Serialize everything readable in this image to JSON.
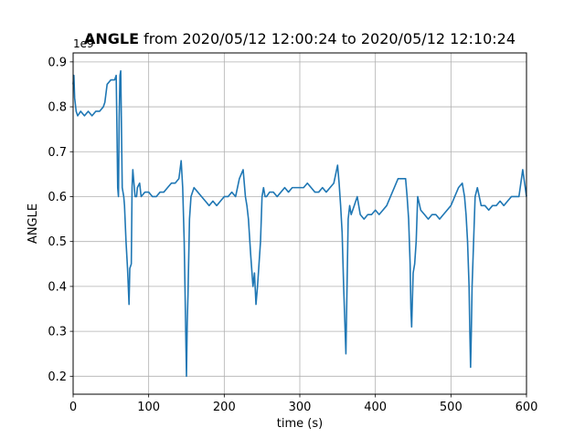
{
  "chart_data": {
    "type": "line",
    "title_bold": "ANGLE",
    "title_rest": " from 2020/05/12 12:00:24 to 2020/05/12 12:10:24",
    "xlabel": "time (s)",
    "ylabel": "ANGLE",
    "offset_text": "1e9",
    "xlim": [
      0,
      600
    ],
    "ylim": [
      0.16,
      0.92
    ],
    "xticks": [
      0,
      100,
      200,
      300,
      400,
      500,
      600
    ],
    "xtick_labels": [
      "0",
      "100",
      "200",
      "300",
      "400",
      "500",
      "600"
    ],
    "yticks": [
      0.2,
      0.3,
      0.4,
      0.5,
      0.6,
      0.7,
      0.8,
      0.9
    ],
    "ytick_labels": [
      "0.2",
      "0.3",
      "0.4",
      "0.5",
      "0.6",
      "0.7",
      "0.8",
      "0.9"
    ],
    "grid": true,
    "line_color": "#1f77b4",
    "series": [
      {
        "x": [
          0,
          1,
          2,
          4,
          6,
          10,
          15,
          20,
          25,
          30,
          35,
          40,
          42,
          45,
          50,
          55,
          57,
          58,
          59,
          60,
          61,
          62,
          63,
          65,
          67,
          68,
          70,
          72,
          73,
          74,
          75,
          77,
          78,
          79,
          80,
          82,
          84,
          85,
          88,
          90,
          95,
          100,
          105,
          110,
          115,
          120,
          125,
          130,
          135,
          140,
          143,
          145,
          147,
          148,
          149,
          150,
          151,
          152,
          154,
          156,
          158,
          160,
          165,
          170,
          175,
          180,
          185,
          190,
          195,
          200,
          205,
          210,
          215,
          220,
          225,
          228,
          230,
          232,
          235,
          238,
          240,
          242,
          244,
          246,
          248,
          250,
          252,
          254,
          256,
          260,
          265,
          270,
          275,
          280,
          285,
          290,
          295,
          300,
          305,
          310,
          315,
          320,
          325,
          330,
          335,
          340,
          345,
          350,
          352,
          354,
          356,
          358,
          360,
          361,
          362,
          364,
          366,
          368,
          372,
          376,
          380,
          385,
          390,
          395,
          400,
          405,
          410,
          415,
          420,
          425,
          430,
          432,
          435,
          440,
          442,
          444,
          446,
          447,
          448,
          450,
          452,
          454,
          456,
          460,
          465,
          470,
          475,
          480,
          485,
          490,
          495,
          500,
          505,
          510,
          515,
          518,
          520,
          522,
          524,
          525,
          526,
          527,
          528,
          530,
          532,
          535,
          540,
          545,
          550,
          555,
          560,
          565,
          570,
          575,
          580,
          585,
          590,
          595,
          600
        ],
        "y": [
          0.85,
          0.87,
          0.82,
          0.79,
          0.78,
          0.79,
          0.78,
          0.79,
          0.78,
          0.79,
          0.79,
          0.8,
          0.81,
          0.85,
          0.86,
          0.86,
          0.87,
          0.75,
          0.62,
          0.6,
          0.78,
          0.87,
          0.88,
          0.62,
          0.6,
          0.58,
          0.5,
          0.44,
          0.4,
          0.36,
          0.44,
          0.45,
          0.62,
          0.66,
          0.64,
          0.6,
          0.6,
          0.62,
          0.63,
          0.6,
          0.61,
          0.61,
          0.6,
          0.6,
          0.61,
          0.61,
          0.62,
          0.63,
          0.63,
          0.64,
          0.68,
          0.62,
          0.5,
          0.4,
          0.3,
          0.2,
          0.32,
          0.38,
          0.55,
          0.6,
          0.61,
          0.62,
          0.61,
          0.6,
          0.59,
          0.58,
          0.59,
          0.58,
          0.59,
          0.6,
          0.6,
          0.61,
          0.6,
          0.64,
          0.66,
          0.6,
          0.58,
          0.55,
          0.47,
          0.4,
          0.43,
          0.36,
          0.4,
          0.45,
          0.5,
          0.6,
          0.62,
          0.6,
          0.6,
          0.61,
          0.61,
          0.6,
          0.61,
          0.62,
          0.61,
          0.62,
          0.62,
          0.62,
          0.62,
          0.63,
          0.62,
          0.61,
          0.61,
          0.62,
          0.61,
          0.62,
          0.63,
          0.67,
          0.63,
          0.58,
          0.52,
          0.4,
          0.3,
          0.25,
          0.35,
          0.55,
          0.58,
          0.56,
          0.58,
          0.6,
          0.56,
          0.55,
          0.56,
          0.56,
          0.57,
          0.56,
          0.57,
          0.58,
          0.6,
          0.62,
          0.64,
          0.64,
          0.64,
          0.64,
          0.6,
          0.55,
          0.45,
          0.35,
          0.31,
          0.43,
          0.45,
          0.5,
          0.6,
          0.57,
          0.56,
          0.55,
          0.56,
          0.56,
          0.55,
          0.56,
          0.57,
          0.58,
          0.6,
          0.62,
          0.63,
          0.6,
          0.56,
          0.5,
          0.4,
          0.3,
          0.22,
          0.3,
          0.4,
          0.5,
          0.6,
          0.62,
          0.58,
          0.58,
          0.57,
          0.58,
          0.58,
          0.59,
          0.58,
          0.59,
          0.6,
          0.6,
          0.6,
          0.66,
          0.6
        ]
      }
    ]
  }
}
